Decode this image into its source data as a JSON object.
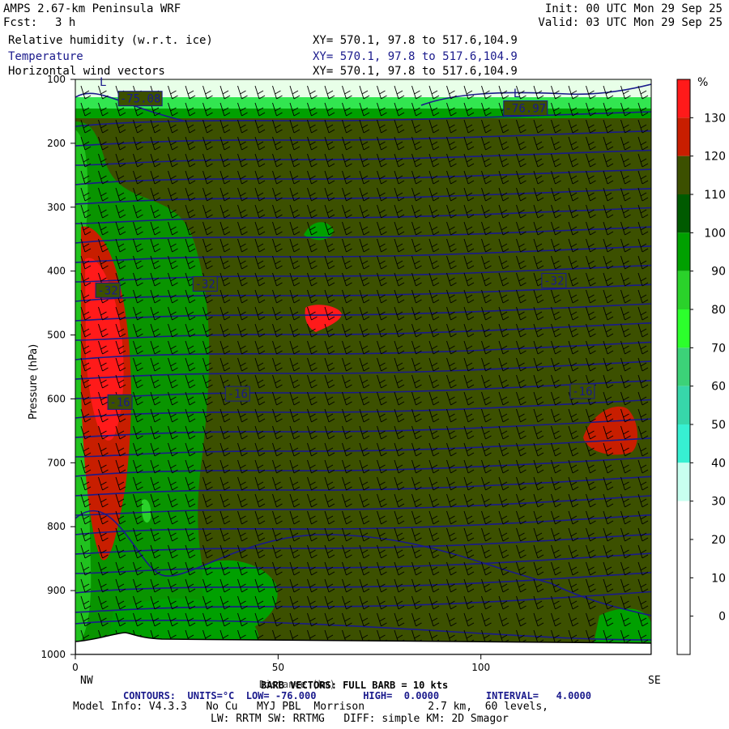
{
  "header": {
    "title": "AMPS 2.67-km Peninsula WRF",
    "fcst_label": "Fcst:",
    "fcst_value": "3 h",
    "init": "Init: 00 UTC Mon 29 Sep 25",
    "valid": "Valid: 03 UTC Mon 29 Sep 25"
  },
  "fields": [
    {
      "name": "Relative humidity (w.r.t. ice)",
      "xy": "XY= 570.1, 97.8 to 517.6,104.9",
      "color": "#000000"
    },
    {
      "name": "Temperature",
      "xy": "XY= 570.1, 97.8 to 517.6,104.9",
      "color": "#1a1a8c"
    },
    {
      "name": "Horizontal wind vectors",
      "xy": "XY= 570.1, 97.8 to 517.6,104.9",
      "color": "#000000"
    }
  ],
  "chart_data": {
    "type": "heatmap",
    "ylabel": "Pressure (hPa)",
    "xlabel": "Distance (km)",
    "x_left_label": "NW",
    "x_right_label": "SE",
    "xlim": [
      0,
      142
    ],
    "ylim": [
      1000,
      100
    ],
    "x_ticks": [
      0,
      50,
      100
    ],
    "y_ticks": [
      100,
      200,
      300,
      400,
      500,
      600,
      700,
      800,
      900,
      1000
    ],
    "colorbar": {
      "unit": "%",
      "levels": [
        130,
        120,
        110,
        100,
        90,
        80,
        70,
        60,
        50,
        40,
        30,
        20,
        10,
        0
      ],
      "colors": [
        "#ff1a1a",
        "#c81e00",
        "#3c5000",
        "#005a00",
        "#00a000",
        "#2ad22a",
        "#2cff2c",
        "#3cd278",
        "#37d7aa",
        "#37f0d2",
        "#c8fff0",
        "#ffffff",
        "#ffffff",
        "#ffffff"
      ]
    },
    "temperature_contour_labels": [
      {
        "label": "-75.08",
        "x": 16,
        "p": 130
      },
      {
        "label": "-76.97",
        "x": 111,
        "p": 145
      },
      {
        "label": "-32",
        "x": 8,
        "p": 430
      },
      {
        "label": "-32",
        "x": 32,
        "p": 420
      },
      {
        "label": "-32",
        "x": 118,
        "p": 415
      },
      {
        "label": "-16",
        "x": 11,
        "p": 605
      },
      {
        "label": "-16",
        "x": 40,
        "p": 592
      },
      {
        "label": "-16",
        "x": 125,
        "p": 588
      }
    ],
    "high_label": "L",
    "low_label": "L"
  },
  "footer": {
    "barb": "BARB VECTORS: FULL BARB = 10 kts",
    "contours": "CONTOURS:  UNITS=°C  LOW= -76.000        HIGH=  0.0000        INTERVAL=   4.0000",
    "model_info": "Model Info: V4.3.3   No Cu   MYJ PBL  Morrison          2.7 km,  60 levels,",
    "model_info2": "LW: RRTM SW: RRTMG   DIFF: simple KM: 2D Smagor"
  }
}
